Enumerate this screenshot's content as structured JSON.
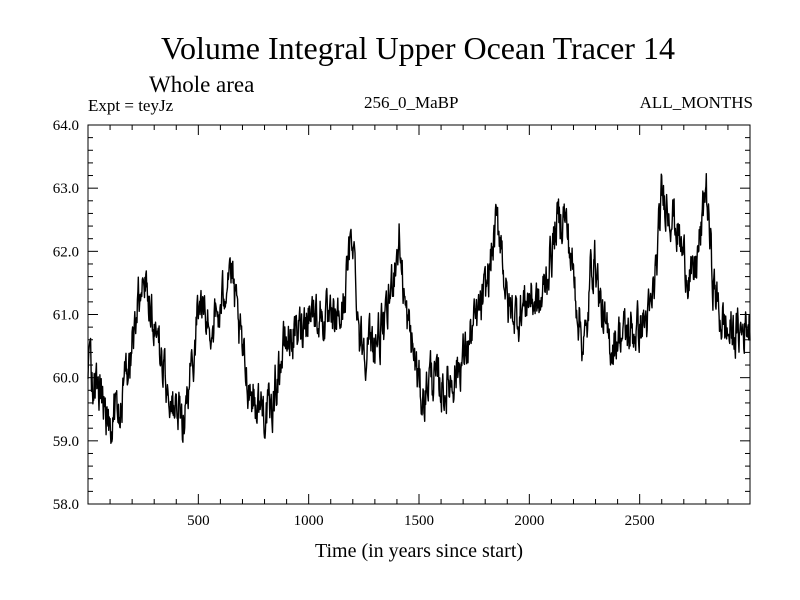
{
  "header": {
    "title": "Volume Integral Upper Ocean Tracer 14",
    "subtitle": "Whole area",
    "expt": "Expt = teyJz",
    "run": "256_0_MaBP",
    "months": "ALL_MONTHS"
  },
  "chart_data": {
    "type": "line",
    "title": "Volume Integral Upper Ocean Tracer 14",
    "subtitle": "Whole area",
    "xlabel": "Time (in years since start)",
    "ylabel": "",
    "xlim": [
      0,
      3000
    ],
    "ylim": [
      58.0,
      64.0
    ],
    "x_ticks": [
      500,
      1000,
      1500,
      2000,
      2500
    ],
    "x_tick_labels": [
      "500",
      "1000",
      "1500",
      "2000",
      "2500"
    ],
    "y_ticks": [
      58.0,
      59.0,
      60.0,
      61.0,
      62.0,
      63.0,
      64.0
    ],
    "y_tick_labels": [
      "58.0",
      "59.0",
      "60.0",
      "61.0",
      "62.0",
      "63.0",
      "64.0"
    ],
    "line_color": "#000000",
    "series": [
      {
        "name": "Tracer 14",
        "x": [
          0,
          50,
          100,
          150,
          200,
          230,
          250,
          270,
          300,
          350,
          380,
          420,
          450,
          480,
          500,
          550,
          600,
          640,
          680,
          720,
          760,
          800,
          830,
          860,
          900,
          950,
          1000,
          1050,
          1100,
          1150,
          1180,
          1200,
          1230,
          1260,
          1300,
          1350,
          1380,
          1410,
          1440,
          1480,
          1500,
          1520,
          1550,
          1580,
          1620,
          1650,
          1700,
          1750,
          1800,
          1850,
          1870,
          1900,
          1950,
          2000,
          2050,
          2100,
          2130,
          2160,
          2200,
          2240,
          2260,
          2280,
          2300,
          2320,
          2350,
          2380,
          2400,
          2450,
          2500,
          2550,
          2580,
          2600,
          2620,
          2650,
          2700,
          2740,
          2780,
          2800,
          2830,
          2860,
          2900,
          2950,
          3000
        ],
        "values": [
          60.2,
          59.7,
          59.4,
          59.5,
          60.5,
          61.3,
          61.7,
          61.5,
          60.9,
          60.0,
          59.6,
          59.3,
          59.6,
          60.4,
          61.2,
          60.8,
          61.0,
          61.9,
          60.8,
          60.0,
          59.6,
          59.5,
          59.4,
          60.1,
          60.6,
          60.7,
          61.1,
          61.0,
          60.8,
          61.0,
          61.8,
          62.3,
          60.7,
          60.5,
          60.6,
          60.8,
          61.6,
          62.2,
          61.0,
          60.3,
          59.9,
          59.6,
          60.1,
          59.9,
          59.8,
          60.0,
          60.3,
          60.8,
          61.3,
          62.4,
          62.3,
          61.1,
          61.0,
          61.3,
          61.1,
          62.0,
          62.5,
          62.6,
          61.6,
          60.6,
          60.6,
          61.8,
          61.9,
          61.2,
          60.6,
          60.5,
          60.7,
          60.7,
          60.8,
          61.0,
          61.9,
          62.9,
          62.8,
          62.6,
          61.9,
          61.5,
          62.3,
          63.1,
          61.6,
          61.0,
          60.7,
          60.7,
          60.9
        ]
      }
    ]
  }
}
